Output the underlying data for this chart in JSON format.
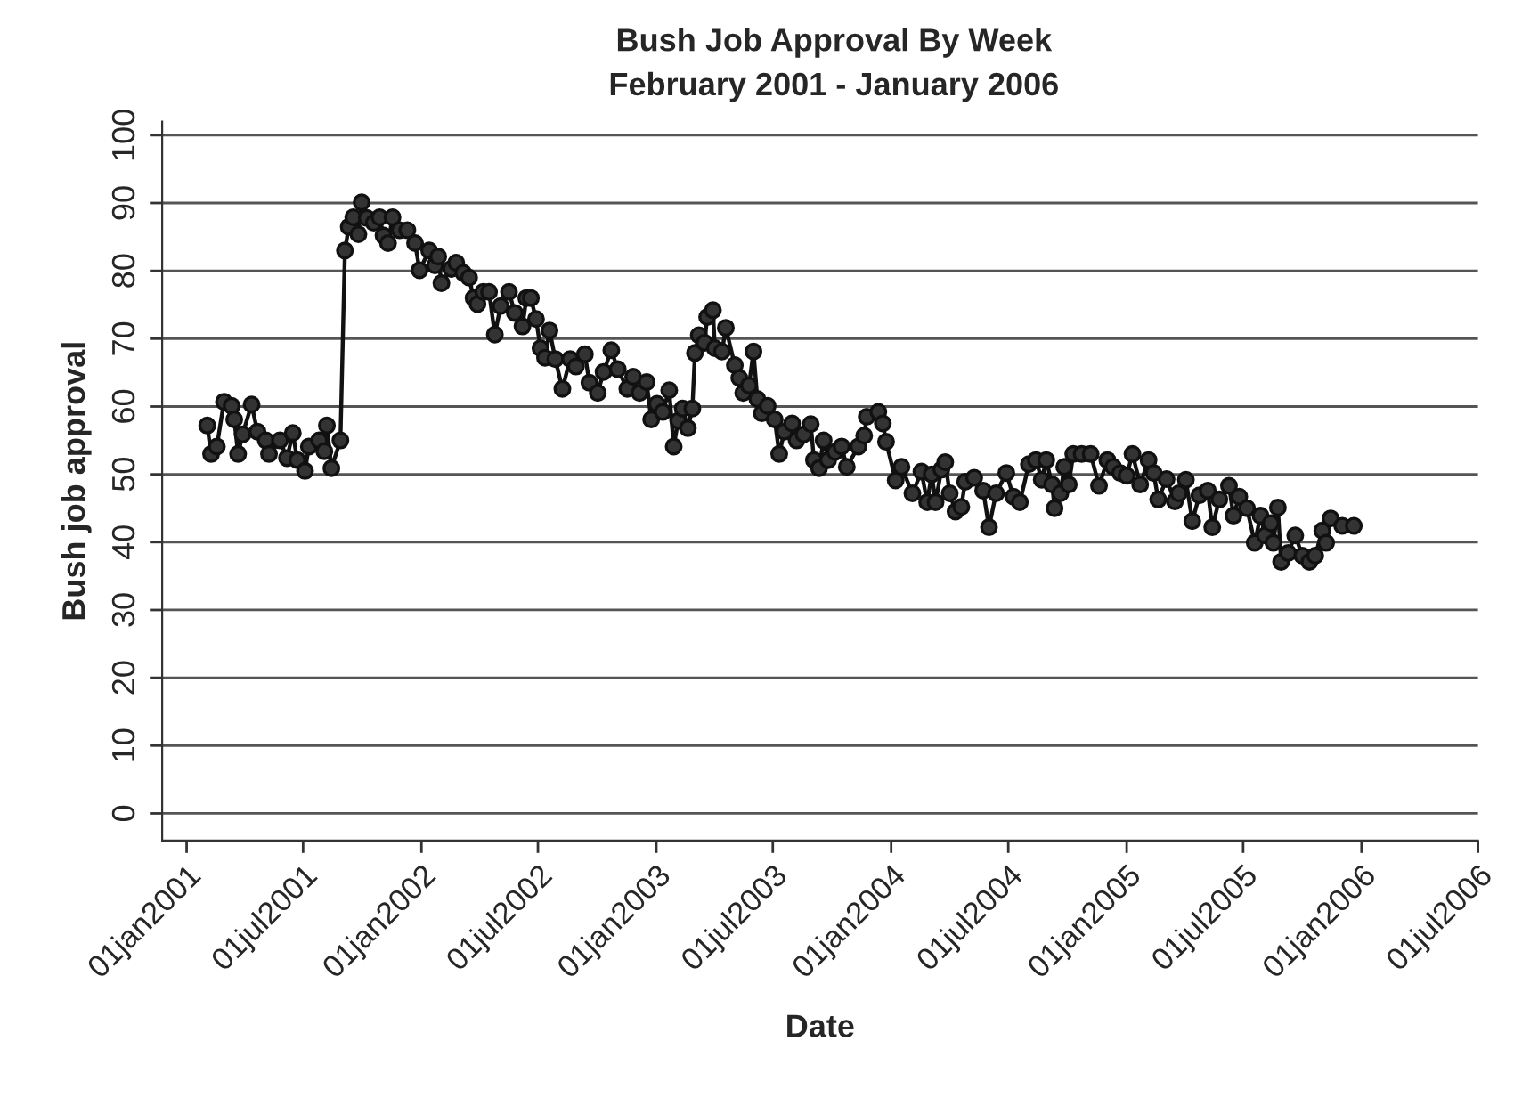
{
  "chart_data": {
    "type": "line",
    "title": "Bush Job Approval By Week",
    "subtitle": "February 2001 - January 2006",
    "xlabel": "Date",
    "ylabel": "Bush job approval",
    "x": [
      "2001-02-02",
      "2001-02-08",
      "2001-02-17",
      "2001-02-28",
      "2001-03-12",
      "2001-03-16",
      "2001-03-22",
      "2001-03-29",
      "2001-04-12",
      "2001-04-21",
      "2001-05-04",
      "2001-05-09",
      "2001-05-26",
      "2001-06-06",
      "2001-06-15",
      "2001-06-22",
      "2001-07-04",
      "2001-07-10",
      "2001-07-26",
      "2001-08-03",
      "2001-08-07",
      "2001-08-14",
      "2001-08-28",
      "2001-09-04",
      "2001-09-10",
      "2001-09-17",
      "2001-09-25",
      "2001-09-30",
      "2001-10-08",
      "2001-10-19",
      "2001-10-28",
      "2001-11-03",
      "2001-11-10",
      "2001-11-17",
      "2001-11-28",
      "2001-12-10",
      "2001-12-22",
      "2001-12-29",
      "2002-01-13",
      "2002-01-22",
      "2002-01-27",
      "2002-02-01",
      "2002-02-16",
      "2002-02-24",
      "2002-03-07",
      "2002-03-16",
      "2002-03-23",
      "2002-03-29",
      "2002-04-07",
      "2002-04-16",
      "2002-04-25",
      "2002-05-04",
      "2002-05-17",
      "2002-05-26",
      "2002-06-07",
      "2002-06-13",
      "2002-06-20",
      "2002-06-28",
      "2002-07-05",
      "2002-07-12",
      "2002-07-19",
      "2002-07-28",
      "2002-08-08",
      "2002-08-20",
      "2002-08-29",
      "2002-09-12",
      "2002-09-19",
      "2002-10-02",
      "2002-10-11",
      "2002-10-23",
      "2002-11-02",
      "2002-11-17",
      "2002-11-26",
      "2002-12-06",
      "2002-12-17",
      "2002-12-24",
      "2003-01-02",
      "2003-01-11",
      "2003-01-21",
      "2003-01-28",
      "2003-02-04",
      "2003-02-11",
      "2003-02-19",
      "2003-02-26",
      "2003-03-02",
      "2003-03-08",
      "2003-03-17",
      "2003-03-21",
      "2003-03-30",
      "2003-04-02",
      "2003-04-13",
      "2003-04-19",
      "2003-05-03",
      "2003-05-10",
      "2003-05-16",
      "2003-05-25",
      "2003-06-01",
      "2003-06-07",
      "2003-06-14",
      "2003-06-23",
      "2003-07-04",
      "2003-07-11",
      "2003-07-19",
      "2003-07-31",
      "2003-08-07",
      "2003-08-18",
      "2003-08-29",
      "2003-09-03",
      "2003-09-11",
      "2003-09-18",
      "2003-09-25",
      "2003-10-06",
      "2003-10-16",
      "2003-10-24",
      "2003-11-11",
      "2003-11-20",
      "2003-11-24",
      "2003-12-12",
      "2003-12-19",
      "2003-12-24",
      "2004-01-08",
      "2004-01-17",
      "2004-02-03",
      "2004-02-17",
      "2004-02-26",
      "2004-03-04",
      "2004-03-10",
      "2004-03-19",
      "2004-03-25",
      "2004-04-01",
      "2004-04-10",
      "2004-04-19",
      "2004-04-25",
      "2004-05-09",
      "2004-05-23",
      "2004-06-01",
      "2004-06-12",
      "2004-06-28",
      "2004-07-09",
      "2004-07-19",
      "2004-08-02",
      "2004-08-13",
      "2004-08-22",
      "2004-08-29",
      "2004-09-07",
      "2004-09-11",
      "2004-09-20",
      "2004-09-26",
      "2004-10-03",
      "2004-10-10",
      "2004-10-23",
      "2004-11-06",
      "2004-11-19",
      "2004-12-02",
      "2004-12-11",
      "2004-12-22",
      "2005-01-01",
      "2005-01-10",
      "2005-01-22",
      "2005-02-04",
      "2005-02-12",
      "2005-02-19",
      "2005-03-04",
      "2005-03-17",
      "2005-03-23",
      "2005-04-03",
      "2005-04-13",
      "2005-04-24",
      "2005-05-07",
      "2005-05-14",
      "2005-05-25",
      "2005-06-09",
      "2005-06-16",
      "2005-06-25",
      "2005-07-07",
      "2005-07-19",
      "2005-07-28",
      "2005-08-04",
      "2005-08-13",
      "2005-08-17",
      "2005-08-24",
      "2005-08-29",
      "2005-09-09",
      "2005-09-20",
      "2005-10-01",
      "2005-10-12",
      "2005-10-21",
      "2005-11-01",
      "2005-11-07",
      "2005-11-14",
      "2005-12-02",
      "2005-12-20"
    ],
    "series": [
      {
        "color": "#333333",
        "values": [
          57.2,
          53.0,
          54.1,
          60.7,
          60.1,
          58.1,
          53.0,
          55.9,
          60.3,
          56.3,
          55.0,
          53.0,
          55.0,
          52.4,
          56.1,
          52.1,
          50.5,
          54.1,
          55.0,
          53.4,
          57.2,
          50.9,
          55.0,
          83.0,
          86.5,
          87.9,
          85.4,
          90.1,
          87.8,
          87.1,
          87.9,
          85.2,
          84.1,
          87.9,
          86.0,
          86.0,
          84.1,
          80.1,
          83.0,
          80.8,
          82.1,
          78.2,
          80.3,
          81.2,
          79.7,
          79.0,
          76.0,
          75.1,
          76.9,
          76.9,
          70.6,
          74.8,
          76.9,
          73.8,
          71.8,
          76.0,
          76.0,
          72.9,
          68.6,
          67.2,
          71.2,
          67.0,
          62.6,
          67.0,
          65.9,
          67.7,
          63.5,
          62.0,
          65.1,
          68.3,
          65.5,
          62.6,
          64.4,
          62.0,
          63.6,
          58.1,
          60.4,
          59.2,
          62.4,
          54.1,
          57.9,
          59.7,
          56.8,
          59.7,
          67.9,
          70.5,
          69.4,
          73.2,
          74.2,
          68.6,
          68.1,
          71.6,
          66.1,
          64.2,
          62.0,
          63.1,
          68.1,
          61.1,
          59.0,
          60.1,
          58.1,
          53.0,
          56.3,
          57.5,
          55.0,
          55.9,
          57.4,
          52.1,
          50.9,
          55.0,
          52.1,
          53.3,
          54.1,
          51.1,
          54.1,
          55.7,
          58.5,
          59.2,
          57.5,
          54.8,
          49.1,
          51.1,
          47.2,
          50.4,
          45.9,
          50.0,
          45.9,
          50.7,
          51.8,
          47.2,
          44.5,
          45.2,
          48.9,
          49.5,
          47.6,
          42.2,
          47.2,
          50.2,
          46.7,
          45.9,
          51.5,
          52.1,
          49.2,
          52.1,
          48.5,
          45.0,
          47.2,
          51.1,
          48.5,
          53.0,
          53.0,
          53.0,
          48.3,
          52.1,
          51.1,
          50.2,
          49.8,
          53.0,
          48.5,
          52.1,
          50.2,
          46.3,
          49.3,
          46.0,
          47.2,
          49.2,
          43.1,
          46.9,
          47.6,
          42.2,
          46.3,
          48.3,
          43.9,
          46.7,
          45.0,
          39.9,
          43.9,
          41.0,
          42.8,
          39.9,
          45.1,
          37.1,
          38.4,
          41.0,
          38.0,
          37.1,
          38.0,
          41.7,
          39.9,
          43.5,
          42.4,
          42.4
        ]
      }
    ],
    "xlim": [
      "2000-11-24",
      "2006-07-01"
    ],
    "xticks": [
      {
        "value": "2001-01-01",
        "label": "01jan2001"
      },
      {
        "value": "2001-07-01",
        "label": "01jul2001"
      },
      {
        "value": "2002-01-01",
        "label": "01jan2002"
      },
      {
        "value": "2002-07-01",
        "label": "01jul2002"
      },
      {
        "value": "2003-01-01",
        "label": "01jan2003"
      },
      {
        "value": "2003-07-01",
        "label": "01jul2003"
      },
      {
        "value": "2004-01-01",
        "label": "01jan2004"
      },
      {
        "value": "2004-07-01",
        "label": "01jul2004"
      },
      {
        "value": "2005-01-01",
        "label": "01jan2005"
      },
      {
        "value": "2005-07-01",
        "label": "01jul2005"
      },
      {
        "value": "2006-01-01",
        "label": "01jan2006"
      },
      {
        "value": "2006-07-01",
        "label": "01jul2006"
      }
    ],
    "ylim": [
      -4,
      102
    ],
    "yticks": [
      0,
      10,
      20,
      30,
      40,
      50,
      60,
      70,
      80,
      90,
      100
    ],
    "grid": "y",
    "marker": "circle",
    "line_style": "solid"
  }
}
